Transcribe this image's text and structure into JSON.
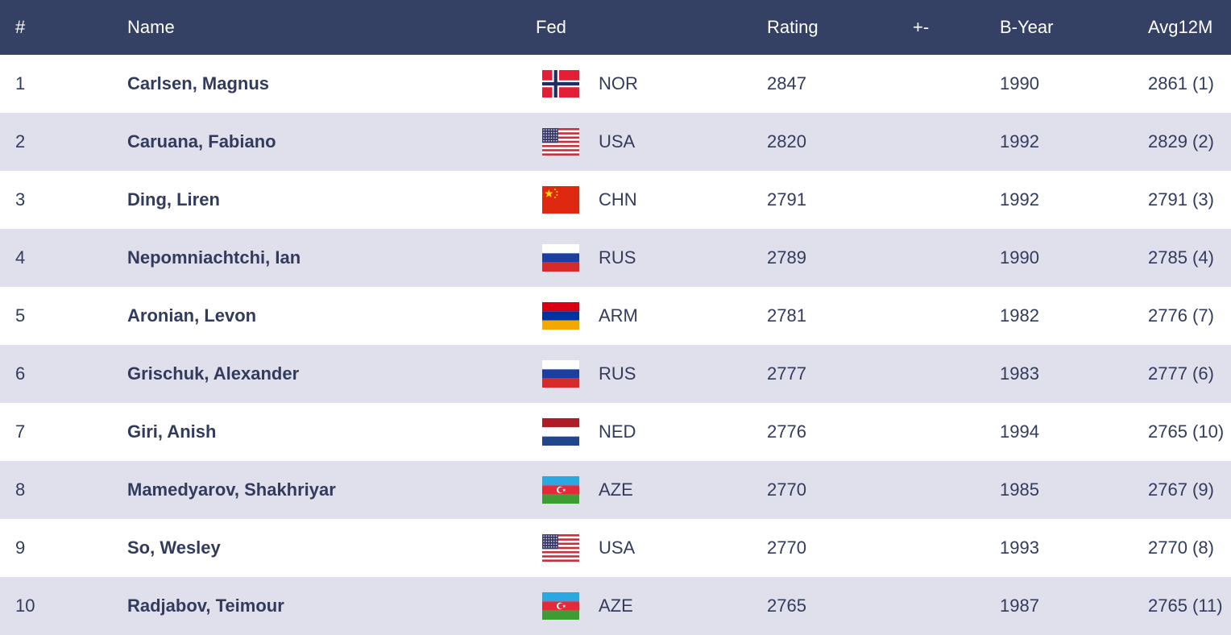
{
  "header": {
    "rank": "#",
    "name": "Name",
    "fed": "Fed",
    "rating": "Rating",
    "change": "+-",
    "byear": "B-Year",
    "avg": "Avg12M"
  },
  "players": [
    {
      "rank": "1",
      "name": "Carlsen, Magnus",
      "flag": "norway-flag-icon",
      "fed": "NOR",
      "rating": "2847",
      "change": "",
      "byear": "1990",
      "avg": "2861 (1)"
    },
    {
      "rank": "2",
      "name": "Caruana, Fabiano",
      "flag": "usa-flag-icon",
      "fed": "USA",
      "rating": "2820",
      "change": "",
      "byear": "1992",
      "avg": "2829 (2)"
    },
    {
      "rank": "3",
      "name": "Ding, Liren",
      "flag": "china-flag-icon",
      "fed": "CHN",
      "rating": "2791",
      "change": "",
      "byear": "1992",
      "avg": "2791 (3)"
    },
    {
      "rank": "4",
      "name": "Nepomniachtchi, Ian",
      "flag": "russia-flag-icon",
      "fed": "RUS",
      "rating": "2789",
      "change": "",
      "byear": "1990",
      "avg": "2785 (4)"
    },
    {
      "rank": "5",
      "name": "Aronian, Levon",
      "flag": "armenia-flag-icon",
      "fed": "ARM",
      "rating": "2781",
      "change": "",
      "byear": "1982",
      "avg": "2776 (7)"
    },
    {
      "rank": "6",
      "name": "Grischuk, Alexander",
      "flag": "russia-flag-icon",
      "fed": "RUS",
      "rating": "2777",
      "change": "",
      "byear": "1983",
      "avg": "2777 (6)"
    },
    {
      "rank": "7",
      "name": "Giri, Anish",
      "flag": "netherlands-flag-icon",
      "fed": "NED",
      "rating": "2776",
      "change": "",
      "byear": "1994",
      "avg": "2765 (10)"
    },
    {
      "rank": "8",
      "name": "Mamedyarov, Shakhriyar",
      "flag": "azerbaijan-flag-icon",
      "fed": "AZE",
      "rating": "2770",
      "change": "",
      "byear": "1985",
      "avg": "2767 (9)"
    },
    {
      "rank": "9",
      "name": "So, Wesley",
      "flag": "usa-flag-icon",
      "fed": "USA",
      "rating": "2770",
      "change": "",
      "byear": "1993",
      "avg": "2770 (8)"
    },
    {
      "rank": "10",
      "name": "Radjabov, Teimour",
      "flag": "azerbaijan-flag-icon",
      "fed": "AZE",
      "rating": "2765",
      "change": "",
      "byear": "1987",
      "avg": "2765 (11)"
    }
  ],
  "colors": {
    "header_bg": "#344164",
    "header_text": "#ffffff",
    "row_alt_bg": "#e0e0ed",
    "row_bg": "#ffffff",
    "text": "#333b5c"
  }
}
